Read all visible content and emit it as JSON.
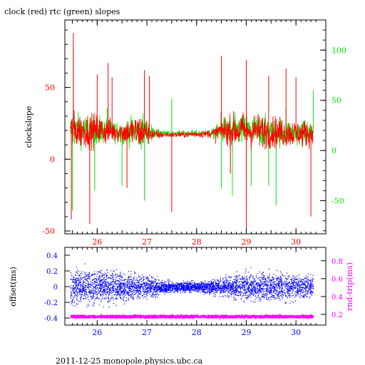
{
  "title": "clock (red) rtc (green) slopes",
  "footer": "2011-12-25  monopole.physics.ubc.ca",
  "colors": {
    "red": "#ff0000",
    "green": "#00ee00",
    "blue": "#0000ff",
    "magenta": "#ff00ff",
    "axis": "#000000"
  },
  "chart_data": [
    {
      "type": "line",
      "title": "clock (red) rtc (green) slopes",
      "xlim": [
        25.35,
        30.6
      ],
      "x_ticks": [
        "26",
        "27",
        "28",
        "29",
        "30"
      ],
      "ylabel": "clockslope",
      "ylim": [
        -52,
        97
      ],
      "y_ticks": [
        "50",
        "0",
        "-50"
      ],
      "y2lim": [
        -83,
        130
      ],
      "y2_ticks": [
        "100",
        "50",
        "0",
        "-50"
      ],
      "grid": false,
      "series": [
        {
          "name": "clock",
          "color": "red",
          "axis": "left",
          "baseline_profile": [
            [
              25.45,
              20
            ],
            [
              26.0,
              20
            ],
            [
              26.5,
              19
            ],
            [
              26.95,
              19
            ],
            [
              27.2,
              17
            ],
            [
              27.6,
              17
            ],
            [
              28.4,
              18
            ],
            [
              28.5,
              20
            ],
            [
              29.0,
              20
            ],
            [
              30.0,
              18
            ],
            [
              30.35,
              18
            ]
          ],
          "spikes": [
            [
              25.48,
              -42
            ],
            [
              25.52,
              88
            ],
            [
              25.85,
              -45
            ],
            [
              26.0,
              59
            ],
            [
              26.22,
              67
            ],
            [
              26.3,
              57
            ],
            [
              26.6,
              -20
            ],
            [
              26.95,
              62
            ],
            [
              27.05,
              58
            ],
            [
              27.5,
              -37
            ],
            [
              28.5,
              72
            ],
            [
              28.68,
              -10
            ],
            [
              29.0,
              -48
            ],
            [
              29.0,
              69
            ],
            [
              29.45,
              58
            ],
            [
              29.8,
              63
            ],
            [
              30.0,
              57
            ],
            [
              30.3,
              -40
            ]
          ]
        },
        {
          "name": "rtc",
          "color": "green",
          "axis": "right",
          "baseline_profile": [
            [
              25.45,
              20
            ],
            [
              26.0,
              20
            ],
            [
              26.5,
              18
            ],
            [
              26.95,
              20
            ],
            [
              27.2,
              17
            ],
            [
              27.6,
              17
            ],
            [
              28.4,
              17
            ],
            [
              28.5,
              20
            ],
            [
              29.0,
              20
            ],
            [
              30.0,
              17
            ],
            [
              30.35,
              17
            ]
          ],
          "spikes": [
            [
              25.5,
              -60
            ],
            [
              25.52,
              102
            ],
            [
              25.95,
              -40
            ],
            [
              26.2,
              42
            ],
            [
              26.5,
              -35
            ],
            [
              26.95,
              -50
            ],
            [
              27.5,
              52
            ],
            [
              28.5,
              -38
            ],
            [
              28.72,
              -45
            ],
            [
              29.0,
              -50
            ],
            [
              29.1,
              -35
            ],
            [
              29.45,
              -35
            ],
            [
              29.6,
              -55
            ],
            [
              29.8,
              42
            ],
            [
              30.35,
              60
            ]
          ]
        }
      ]
    },
    {
      "type": "scatter",
      "xlim": [
        25.35,
        30.6
      ],
      "x_ticks": [
        "26",
        "27",
        "28",
        "29",
        "30"
      ],
      "ylabel": "offset(ms)",
      "ylim": [
        -0.49,
        0.5
      ],
      "y_ticks": [
        "0.4",
        "0.2",
        "0",
        "-0.2",
        "-0.4"
      ],
      "y2label": "rnd-trip(ms)",
      "y2lim": [
        0.08,
        0.95
      ],
      "y2_ticks": [
        "0.8",
        "0.6",
        "0.4",
        "0.2"
      ],
      "series": [
        {
          "name": "offset",
          "color": "blue",
          "axis": "left",
          "center": 0.0,
          "spread_profile": [
            [
              25.45,
              0.18
            ],
            [
              26.0,
              0.17
            ],
            [
              26.5,
              0.15
            ],
            [
              27.0,
              0.12
            ],
            [
              27.3,
              0.06
            ],
            [
              28.0,
              0.05
            ],
            [
              28.5,
              0.09
            ],
            [
              29.0,
              0.14
            ],
            [
              29.8,
              0.15
            ],
            [
              30.35,
              0.12
            ]
          ]
        },
        {
          "name": "rnd-trip",
          "color": "magenta",
          "axis": "right",
          "center": 0.18,
          "spread": 0.02
        }
      ]
    }
  ]
}
